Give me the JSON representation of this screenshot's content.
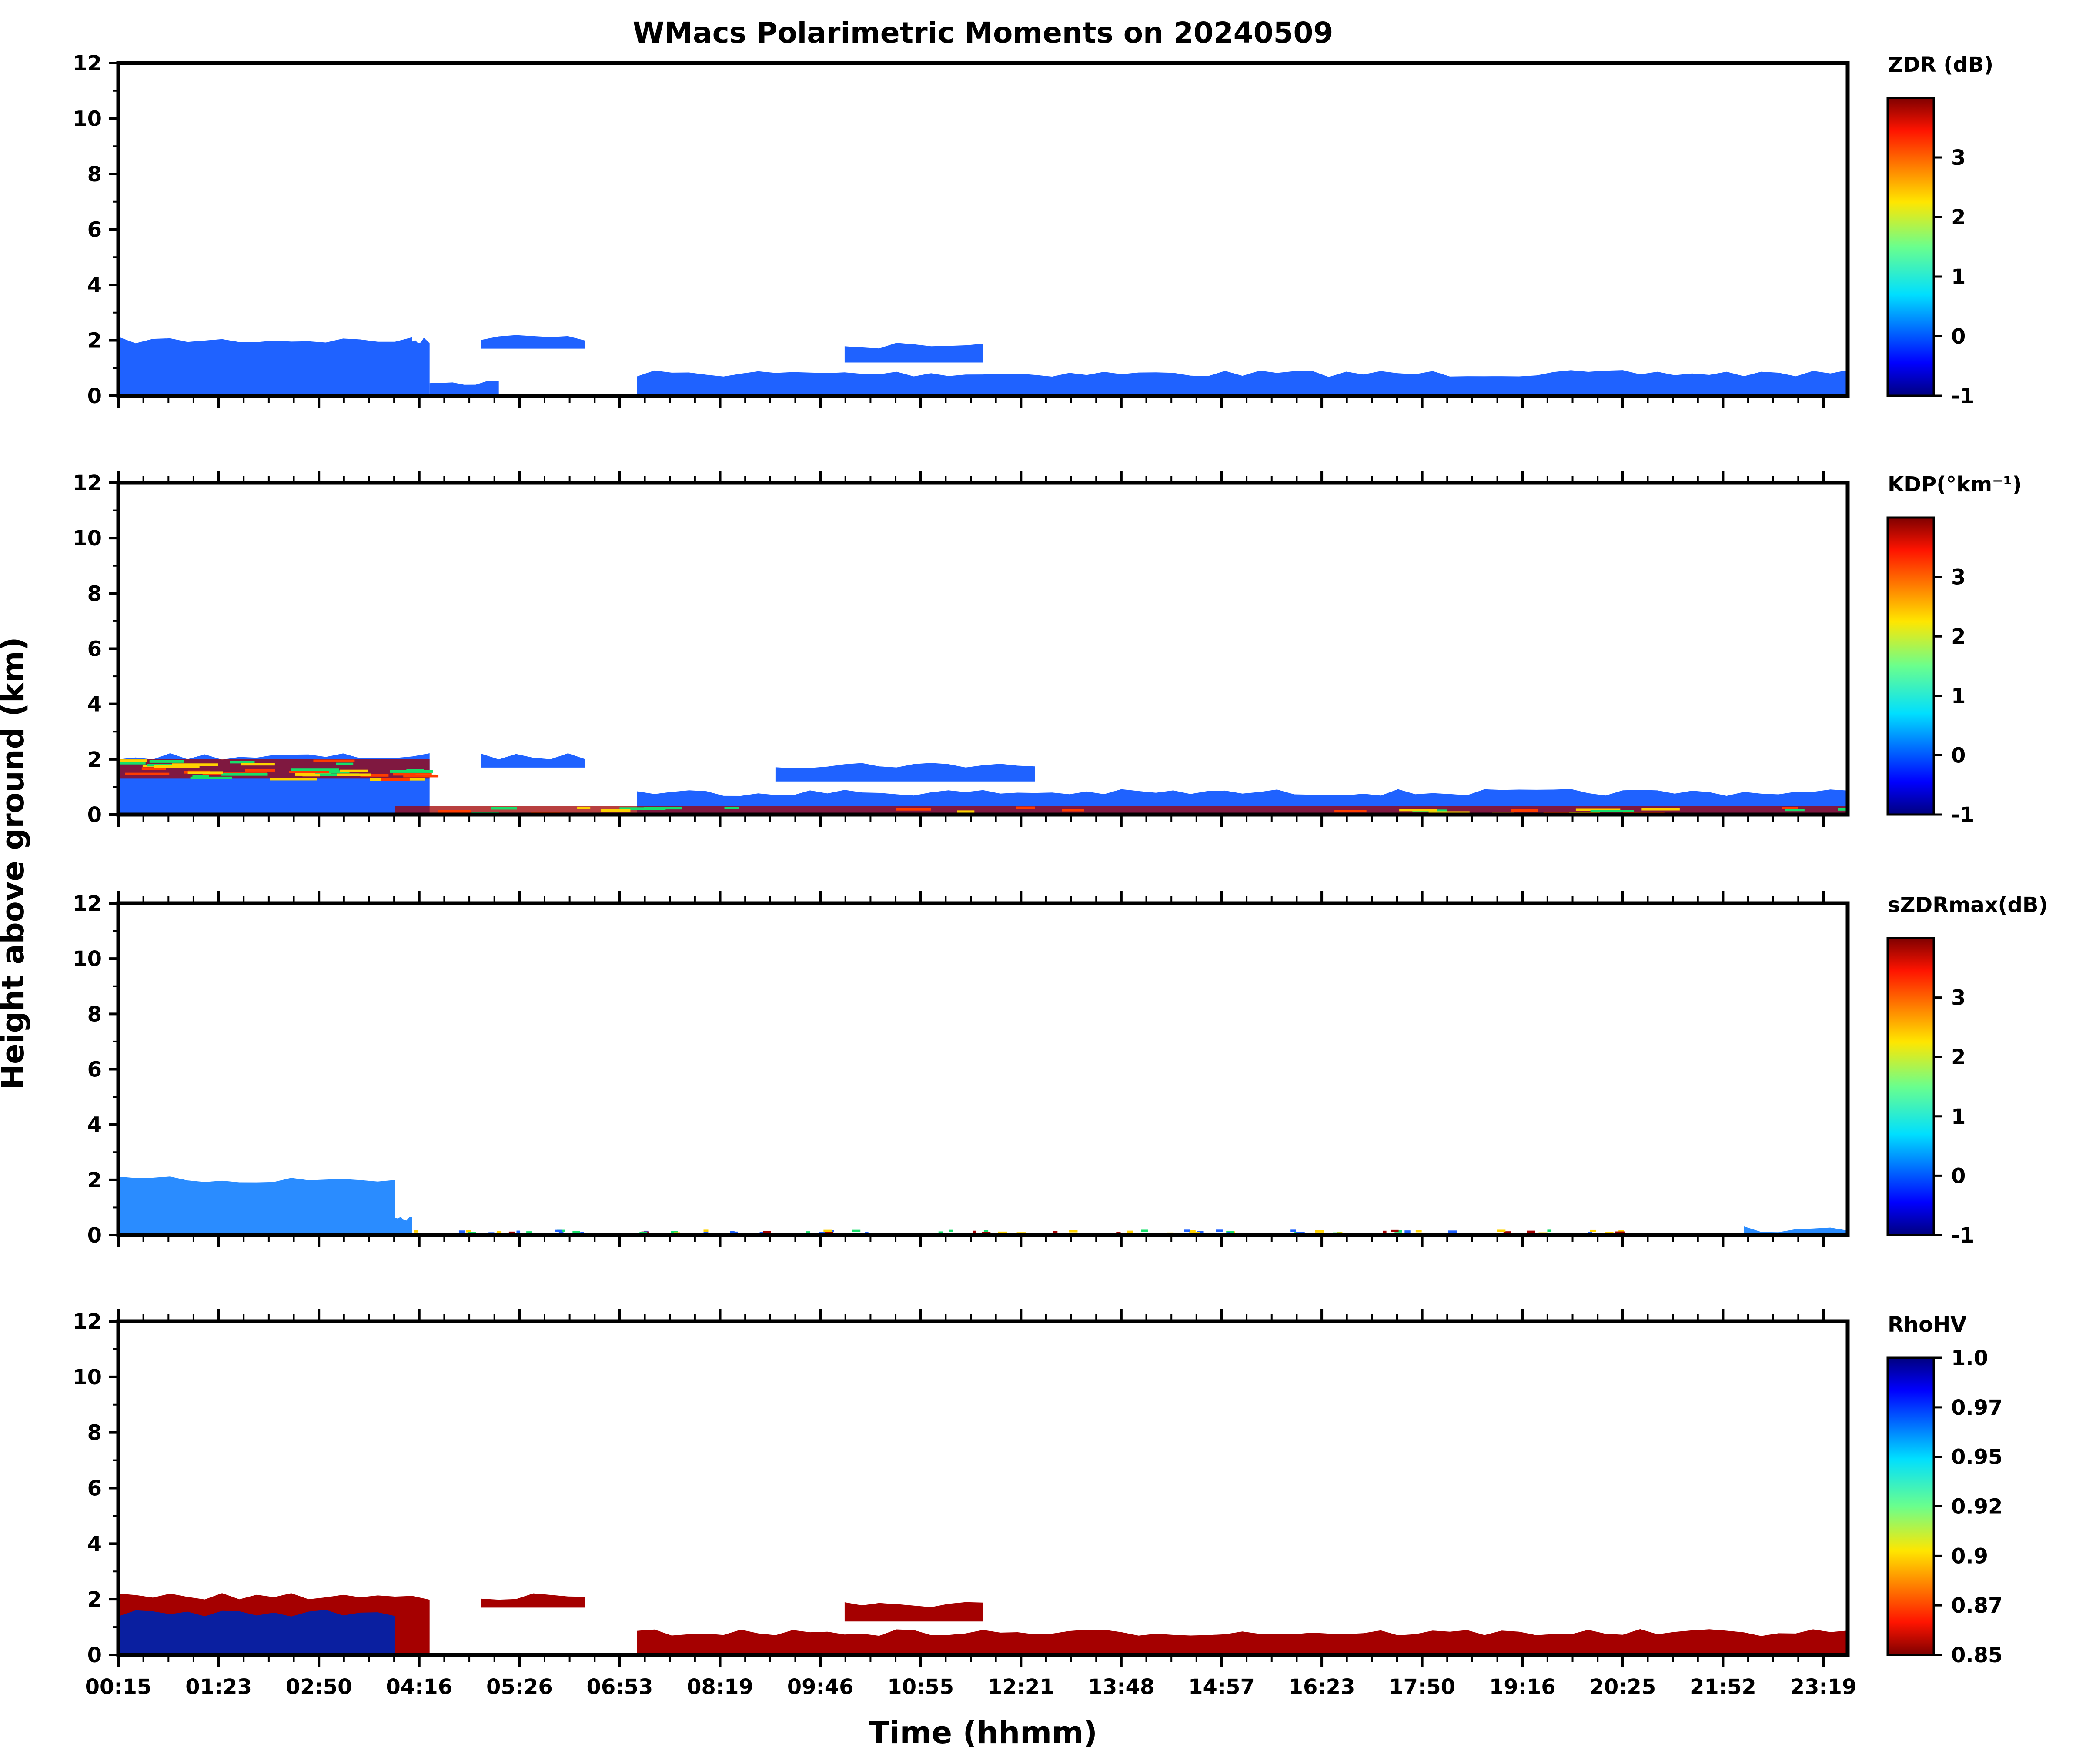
{
  "figure": {
    "title": "WMacs Polarimetric Moments on 20240509",
    "xlabel": "Time (hhmm)",
    "ylabel": "Height above ground (km)"
  },
  "chart_data": {
    "type": "heatmap",
    "x_ticks": [
      "00:15",
      "01:23",
      "02:50",
      "04:16",
      "05:26",
      "06:53",
      "08:19",
      "09:46",
      "10:55",
      "12:21",
      "13:48",
      "14:57",
      "16:23",
      "17:50",
      "19:16",
      "20:25",
      "21:52",
      "23:19"
    ],
    "y_ticks": [
      0,
      2,
      4,
      6,
      8,
      10,
      12
    ],
    "ylim": [
      0,
      12
    ],
    "panels": [
      {
        "name": "zdr",
        "colorbar_label": "ZDR (dB)",
        "colorbar_ticks": [
          "3",
          "2",
          "1",
          "0",
          "-1"
        ],
        "colormap": "jet",
        "vmin": -1,
        "vmax": 4,
        "features": [
          {
            "kind": "ground",
            "color": "#1f62ff",
            "height_km": [
              0.05,
              0.05,
              0.05,
              0.05,
              0.05,
              0.05,
              0.05,
              0.05,
              0.05,
              0.05,
              0.05,
              0.05,
              0.05,
              0.05,
              0.05,
              0.05,
              0.05,
              0.05
            ]
          },
          {
            "kind": "cloud",
            "color": "#1f62ff",
            "block": [
              0.0,
              0.17,
              0.0,
              2.0
            ]
          },
          {
            "kind": "cloud",
            "color": "#1f62ff",
            "block": [
              0.17,
              0.18,
              0.0,
              2.0
            ]
          },
          {
            "kind": "cloud",
            "color": "#1f62ff",
            "block": [
              0.18,
              0.22,
              0.0,
              0.5
            ]
          },
          {
            "kind": "cloud",
            "color": "#1f62ff",
            "block": [
              0.21,
              0.27,
              1.7,
              2.1
            ]
          },
          {
            "kind": "cloud",
            "color": "#1f62ff",
            "block": [
              0.42,
              0.5,
              1.2,
              1.8
            ]
          },
          {
            "kind": "cloud",
            "color": "#1f62ff",
            "block": [
              0.3,
              1.0,
              0.0,
              0.8
            ]
          }
        ]
      },
      {
        "name": "kdp",
        "colorbar_label": "KDP(°km⁻¹)",
        "colorbar_ticks": [
          "3",
          "2",
          "1",
          "0",
          "-1"
        ],
        "colormap": "jet",
        "vmin": -1,
        "vmax": 4,
        "features": [
          {
            "kind": "cloud",
            "color": "#1f62ff",
            "block": [
              0.0,
              0.18,
              0.0,
              2.1
            ]
          },
          {
            "kind": "cloud",
            "color": "#1f62ff",
            "block": [
              0.21,
              0.27,
              1.7,
              2.1
            ]
          },
          {
            "kind": "cloud",
            "color": "#1f62ff",
            "block": [
              0.38,
              0.53,
              1.2,
              1.8
            ]
          },
          {
            "kind": "cloud",
            "color": "#1f62ff",
            "block": [
              0.3,
              1.0,
              0.0,
              0.8
            ]
          },
          {
            "kind": "streak",
            "color": "#a00000",
            "block": [
              0.0,
              0.18,
              1.3,
              2.0
            ]
          },
          {
            "kind": "streak",
            "color": "#a00000",
            "block": [
              0.16,
              1.0,
              0.0,
              0.3
            ]
          }
        ]
      },
      {
        "name": "szdrmax",
        "colorbar_label": "sZDRmax(dB)",
        "colorbar_ticks": [
          "3",
          "2",
          "1",
          "0",
          "-1"
        ],
        "colormap": "jet",
        "vmin": -1,
        "vmax": 4,
        "features": [
          {
            "kind": "cloud",
            "color": "#2a8cff",
            "block": [
              0.0,
              0.16,
              0.0,
              2.0
            ]
          },
          {
            "kind": "cloud",
            "color": "#2a8cff",
            "block": [
              0.16,
              0.17,
              0.0,
              0.6
            ]
          },
          {
            "kind": "noise",
            "color": "#a00000",
            "block": [
              0.17,
              1.0,
              0.0,
              0.2
            ]
          },
          {
            "kind": "cloud",
            "color": "#2a8cff",
            "block": [
              0.94,
              1.0,
              0.0,
              0.2
            ]
          }
        ]
      },
      {
        "name": "rhohv",
        "colorbar_label": "RhoHV",
        "colorbar_ticks": [
          "1.0",
          "0.97",
          "0.95",
          "0.92",
          "0.9",
          "0.87",
          "0.85"
        ],
        "colormap": "jet_r",
        "vmin": 0.85,
        "vmax": 1.0,
        "features": [
          {
            "kind": "cloud",
            "color": "#a50000",
            "block": [
              0.0,
              0.18,
              0.0,
              2.1
            ]
          },
          {
            "kind": "cloud",
            "color": "#a50000",
            "block": [
              0.21,
              0.27,
              1.7,
              2.1
            ]
          },
          {
            "kind": "cloud",
            "color": "#a50000",
            "block": [
              0.42,
              0.5,
              1.2,
              1.8
            ]
          },
          {
            "kind": "cloud",
            "color": "#a50000",
            "block": [
              0.3,
              1.0,
              0.0,
              0.8
            ]
          },
          {
            "kind": "core",
            "color": "#0a1fa0",
            "block": [
              0.0,
              0.16,
              0.0,
              1.5
            ]
          }
        ]
      }
    ]
  }
}
